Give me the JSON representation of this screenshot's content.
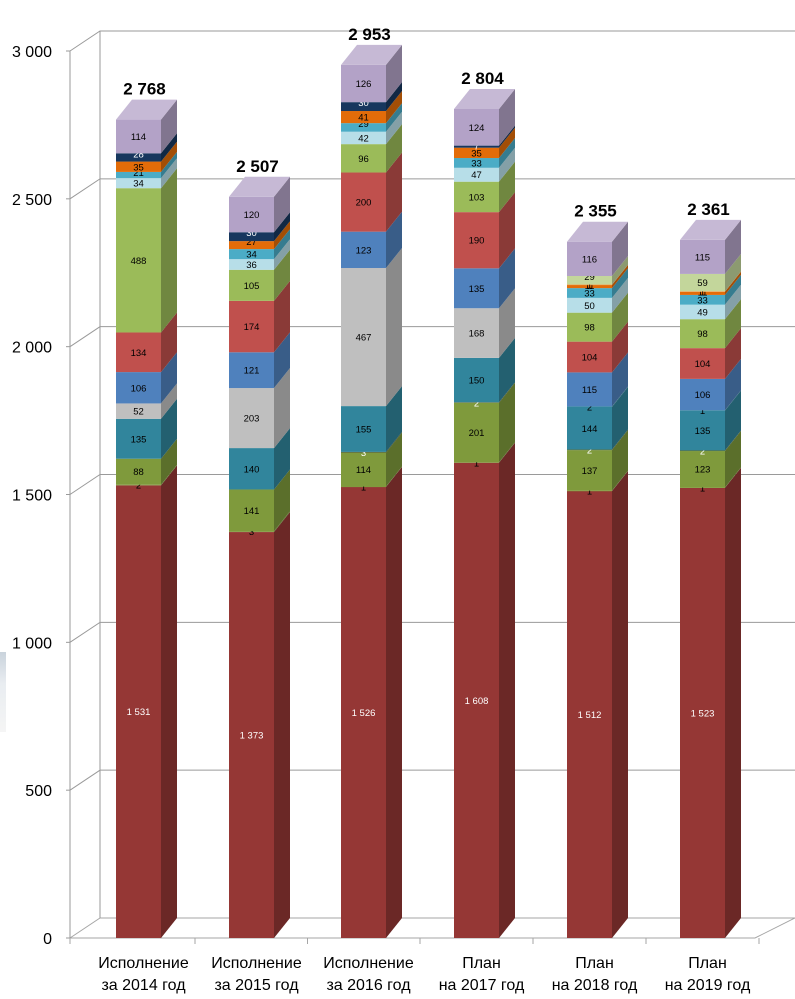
{
  "chart_data": {
    "type": "bar",
    "stacked": true,
    "three_d": true,
    "ylim": [
      0,
      3000
    ],
    "y_ticks": [
      0,
      500,
      1000,
      1500,
      2000,
      2500,
      3000
    ],
    "y_tick_labels": [
      "0",
      "500",
      "1 000",
      "1 500",
      "2 000",
      "2 500",
      "3 000"
    ],
    "grid": true,
    "legend": "none",
    "categories": [
      [
        "Исполнение",
        "за 2014 год"
      ],
      [
        "Исполнение",
        "за 2015 год"
      ],
      [
        "Исполнение",
        "за 2016 год"
      ],
      [
        "План",
        "на 2017 год"
      ],
      [
        "План",
        "на 2018 год"
      ],
      [
        "План",
        "на 2019 год"
      ]
    ],
    "totals": [
      2768,
      2507,
      2953,
      2804,
      2355,
      2361
    ],
    "total_labels": [
      "2 768",
      "2 507",
      "2 953",
      "2 804",
      "2 355",
      "2 361"
    ],
    "series": [
      {
        "color": "#953735",
        "values": [
          1531,
          1373,
          1526,
          1608,
          1512,
          1523
        ],
        "labels": [
          "1 531",
          "1 373",
          "1 526",
          "1 608",
          "1 512",
          "1 523"
        ]
      },
      {
        "color": "#7f9a3c",
        "values": [
          2,
          3,
          1,
          1,
          1,
          1
        ],
        "labels": [
          "2",
          "3",
          "1",
          "1",
          "1",
          "1"
        ]
      },
      {
        "color": "#7f9a3c",
        "values": [
          88,
          141,
          114,
          201,
          137,
          123
        ],
        "labels": [
          "88",
          "141",
          "114",
          "201",
          "137",
          "123"
        ]
      },
      {
        "color": "#4f6228",
        "values": [
          0,
          0,
          3,
          2,
          2,
          2
        ],
        "labels": [
          "",
          "",
          "3",
          "2",
          "2",
          "2"
        ]
      },
      {
        "color": "#31859c",
        "values": [
          135,
          140,
          155,
          150,
          144,
          135
        ],
        "labels": [
          "135",
          "140",
          "155",
          "150",
          "144",
          "135"
        ]
      },
      {
        "color": "#31859c",
        "values": [
          0,
          0,
          0,
          0,
          2,
          1
        ],
        "labels": [
          "",
          "",
          "",
          "",
          "2",
          "1"
        ]
      },
      {
        "color": "#bfbfbf",
        "values": [
          52,
          203,
          467,
          168,
          0,
          0
        ],
        "labels": [
          "52",
          "203",
          "467",
          "168",
          "",
          ""
        ]
      },
      {
        "color": "#4f81bd",
        "values": [
          106,
          121,
          123,
          135,
          115,
          106
        ],
        "labels": [
          "106",
          "121",
          "123",
          "135",
          "115",
          "106"
        ]
      },
      {
        "color": "#c0504d",
        "values": [
          134,
          174,
          200,
          190,
          104,
          104
        ],
        "labels": [
          "134",
          "174",
          "200",
          "190",
          "104",
          "104"
        ]
      },
      {
        "color": "#9bbb59",
        "values": [
          488,
          105,
          96,
          103,
          98,
          98
        ],
        "labels": [
          "488",
          "105",
          "96",
          "103",
          "98",
          "98"
        ]
      },
      {
        "color": "#b7dee8",
        "values": [
          34,
          36,
          42,
          47,
          50,
          49
        ],
        "labels": [
          "34",
          "36",
          "42",
          "47",
          "50",
          "49"
        ]
      },
      {
        "color": "#4bacc6",
        "values": [
          21,
          34,
          29,
          33,
          33,
          33
        ],
        "labels": [
          "21",
          "34",
          "29",
          "33",
          "33",
          "33"
        ]
      },
      {
        "color": "#e36c09",
        "values": [
          35,
          27,
          41,
          35,
          11,
          11
        ],
        "labels": [
          "35",
          "27",
          "41",
          "35",
          "11",
          "11"
        ]
      },
      {
        "color": "#f79646",
        "values": [
          0,
          0,
          0,
          0,
          1,
          1
        ],
        "labels": [
          "",
          "",
          "",
          "",
          "1",
          "1"
        ]
      },
      {
        "color": "#c3d69b",
        "values": [
          0,
          0,
          0,
          0,
          29,
          59
        ],
        "labels": [
          "",
          "",
          "",
          "",
          "29",
          "59"
        ]
      },
      {
        "color": "#17375e",
        "values": [
          28,
          30,
          30,
          7,
          0,
          0
        ],
        "labels": [
          "28",
          "30",
          "30",
          "7",
          "",
          ""
        ]
      },
      {
        "color": "#b3a2c7",
        "values": [
          114,
          120,
          126,
          124,
          116,
          115
        ],
        "labels": [
          "114",
          "120",
          "126",
          "124",
          "116",
          "115"
        ]
      }
    ]
  }
}
